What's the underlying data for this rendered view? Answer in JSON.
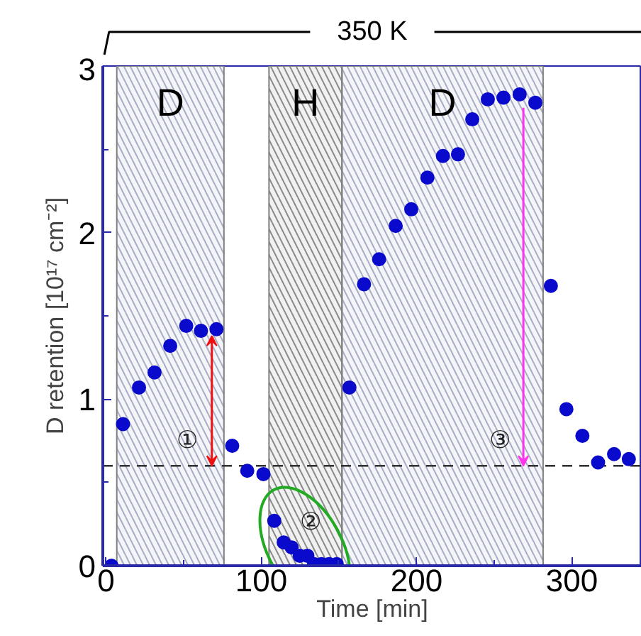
{
  "chart_data": {
    "type": "scatter",
    "title": "350 K",
    "xlabel": "Time [min]",
    "ylabel": "D retention [10¹⁷ cm⁻²]",
    "x": [
      3.6,
      11,
      21.3,
      31.3,
      41.4,
      51.7,
      61.2,
      71.2,
      81.3,
      91,
      101.4,
      108.4,
      114.5,
      119.6,
      124.8,
      129.7,
      134,
      138.8,
      143.7,
      148.6,
      156.8,
      166.2,
      175.9,
      186.6,
      196.6,
      207,
      217,
      226.7,
      235.9,
      245.9,
      256,
      266.4,
      276.5,
      286.5,
      296.5,
      306.8,
      316.9,
      327.2,
      336.7
    ],
    "series": [
      {
        "color": "#0a0acc",
        "values": [
          0,
          0.85,
          1.07,
          1.16,
          1.32,
          1.44,
          1.41,
          1.42,
          0.72,
          0.57,
          0.55,
          0.27,
          0.14,
          0.11,
          0.06,
          0.06,
          0.01,
          0.01,
          0.01,
          0.01,
          1.07,
          1.69,
          1.84,
          2.04,
          2.14,
          2.33,
          2.46,
          2.47,
          2.68,
          2.8,
          2.81,
          2.83,
          2.78,
          1.68,
          0.94,
          0.78,
          0.62,
          0.67,
          0.64
        ]
      }
    ],
    "marker": "circle",
    "xlim": [
      -2,
      345
    ],
    "ylim": [
      0,
      3
    ],
    "xticks": [
      0,
      {
        "value": 50,
        "label": null
      },
      100,
      {
        "value": 150,
        "label": null
      },
      200,
      {
        "value": 250,
        "label": null
      },
      300
    ],
    "yticks": [
      0,
      {
        "value": 0.5,
        "label": null
      },
      1,
      {
        "value": 1.5,
        "label": null
      },
      2,
      {
        "value": 2.5,
        "label": null
      },
      3
    ],
    "ref_lines": [
      {
        "axis": "y",
        "value": 0.6,
        "color": "#303030",
        "line_style": "dashed"
      }
    ],
    "bands": [
      {
        "axis": "x",
        "from": 7,
        "to": 76,
        "label": "D",
        "color": "#a8acc4"
      },
      {
        "axis": "x",
        "from": 105,
        "to": 152,
        "label": "H",
        "color": "#8a8a8a"
      },
      {
        "axis": "x",
        "from": 152,
        "to": 281.5,
        "label": "D",
        "color": "#a8acc4"
      }
    ],
    "annotations": [
      {
        "text": "①",
        "x": 71.2,
        "y": 1.42
      },
      "②",
      {
        "text": "③",
        "x": 268.8,
        "y": 0.6
      }
    ],
    "grid": false
  }
}
